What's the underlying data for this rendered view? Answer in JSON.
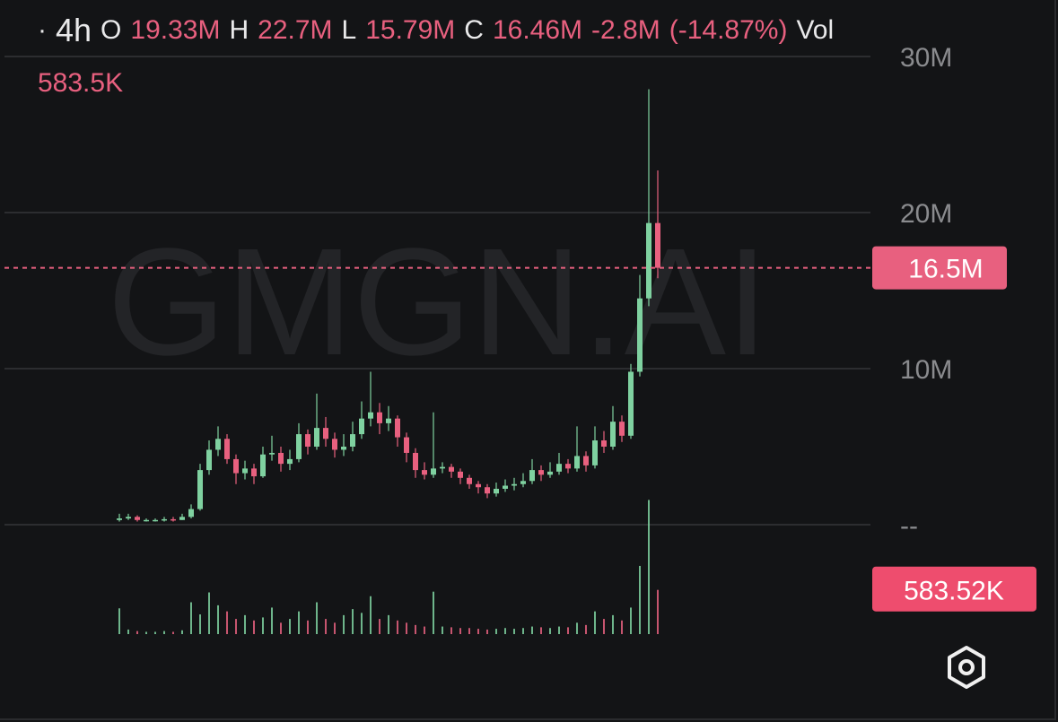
{
  "header": {
    "dot": "·",
    "interval": "4h",
    "open_label": "O",
    "open": "19.33M",
    "high_label": "H",
    "high": "22.7M",
    "low_label": "L",
    "low": "15.79M",
    "close_label": "C",
    "close": "16.46M",
    "change": "-2.8M",
    "change_pct": "(-14.87%)",
    "volume_label": "Vol",
    "volume": "583.5K"
  },
  "watermark": "GMGN.AI",
  "chart_data": {
    "type": "candlestick",
    "open": [
      0.3,
      0.4,
      0.5,
      0.3,
      0.3,
      0.3,
      0.35,
      0.3,
      0.5,
      1.0,
      3.5,
      4.8,
      5.5,
      4.2,
      3.3,
      3.6,
      3.1,
      4.5,
      4.6,
      3.9,
      4.2,
      5.8,
      5.0,
      6.2,
      5.5,
      4.8,
      5.0,
      5.8,
      6.8,
      7.2,
      6.5,
      6.8,
      5.6,
      4.6,
      3.5,
      3.2,
      3.6,
      3.7,
      3.4,
      3.0,
      2.6,
      2.4,
      2.0,
      2.3,
      2.5,
      2.6,
      2.8,
      3.5,
      3.2,
      3.4,
      3.9,
      3.6,
      4.4,
      3.8,
      5.4,
      5.0,
      6.6,
      5.7,
      9.8,
      14.5,
      19.33
    ],
    "high": [
      0.7,
      0.7,
      0.6,
      0.4,
      0.4,
      0.5,
      0.5,
      0.7,
      1.3,
      3.9,
      5.4,
      6.3,
      5.8,
      4.5,
      4.1,
      3.9,
      5.0,
      5.7,
      5.0,
      4.8,
      6.5,
      6.1,
      8.4,
      6.9,
      5.9,
      5.8,
      6.6,
      7.9,
      9.8,
      7.8,
      7.6,
      7.0,
      5.9,
      4.9,
      4.0,
      7.2,
      4.0,
      3.9,
      3.6,
      3.2,
      2.8,
      2.6,
      2.7,
      2.9,
      3.0,
      3.3,
      4.2,
      3.8,
      4.0,
      4.6,
      4.2,
      6.3,
      4.7,
      6.3,
      6.0,
      7.6,
      7.0,
      10.3,
      16.0,
      27.9,
      22.7
    ],
    "low": [
      0.2,
      0.3,
      0.2,
      0.2,
      0.2,
      0.2,
      0.2,
      0.3,
      0.4,
      0.9,
      3.2,
      4.4,
      3.9,
      2.6,
      2.9,
      2.6,
      3.0,
      4.1,
      3.4,
      3.5,
      4.0,
      4.5,
      4.8,
      5.0,
      4.3,
      4.4,
      4.7,
      5.5,
      6.3,
      5.8,
      6.0,
      5.0,
      4.0,
      3.0,
      2.9,
      3.0,
      3.3,
      3.0,
      2.6,
      2.3,
      2.0,
      1.7,
      1.8,
      2.1,
      2.2,
      2.4,
      2.6,
      2.8,
      3.0,
      3.2,
      3.3,
      3.4,
      3.4,
      3.6,
      4.6,
      4.8,
      5.3,
      5.5,
      9.5,
      14.0,
      15.79
    ],
    "close": [
      0.4,
      0.5,
      0.3,
      0.3,
      0.3,
      0.35,
      0.3,
      0.5,
      1.0,
      3.5,
      4.8,
      5.5,
      4.2,
      3.3,
      3.6,
      3.1,
      4.5,
      4.6,
      3.9,
      4.2,
      5.8,
      5.0,
      6.2,
      5.5,
      4.8,
      5.0,
      5.8,
      6.8,
      7.2,
      6.5,
      6.8,
      5.6,
      4.6,
      3.5,
      3.2,
      3.6,
      3.7,
      3.4,
      3.0,
      2.6,
      2.4,
      2.0,
      2.3,
      2.5,
      2.6,
      2.8,
      3.5,
      3.2,
      3.4,
      3.9,
      3.6,
      4.4,
      3.8,
      5.4,
      5.0,
      6.6,
      5.7,
      9.8,
      14.5,
      19.33,
      16.46
    ],
    "volume": [
      340,
      60,
      40,
      30,
      30,
      40,
      30,
      50,
      420,
      260,
      550,
      380,
      300,
      200,
      250,
      180,
      220,
      350,
      150,
      200,
      300,
      180,
      420,
      200,
      150,
      250,
      330,
      280,
      500,
      200,
      250,
      180,
      150,
      120,
      100,
      560,
      100,
      90,
      80,
      80,
      70,
      60,
      70,
      80,
      70,
      80,
      100,
      90,
      80,
      100,
      90,
      150,
      120,
      300,
      200,
      250,
      180,
      350,
      900,
      1770,
      583.52
    ],
    "ylim": [
      0,
      30
    ],
    "yticks": [
      {
        "value": 0,
        "label": "--"
      },
      {
        "value": 10,
        "label": "10M"
      },
      {
        "value": 20,
        "label": "20M"
      },
      {
        "value": 30,
        "label": "30M"
      }
    ],
    "vlim": [
      0,
      2000
    ],
    "last_price": {
      "value": 16.46,
      "label": "16.5M"
    },
    "last_volume": {
      "value": 583.52,
      "label": "583.52K"
    },
    "up_color": "#7fd1a0",
    "down_color": "#e8607f",
    "grid": true
  }
}
